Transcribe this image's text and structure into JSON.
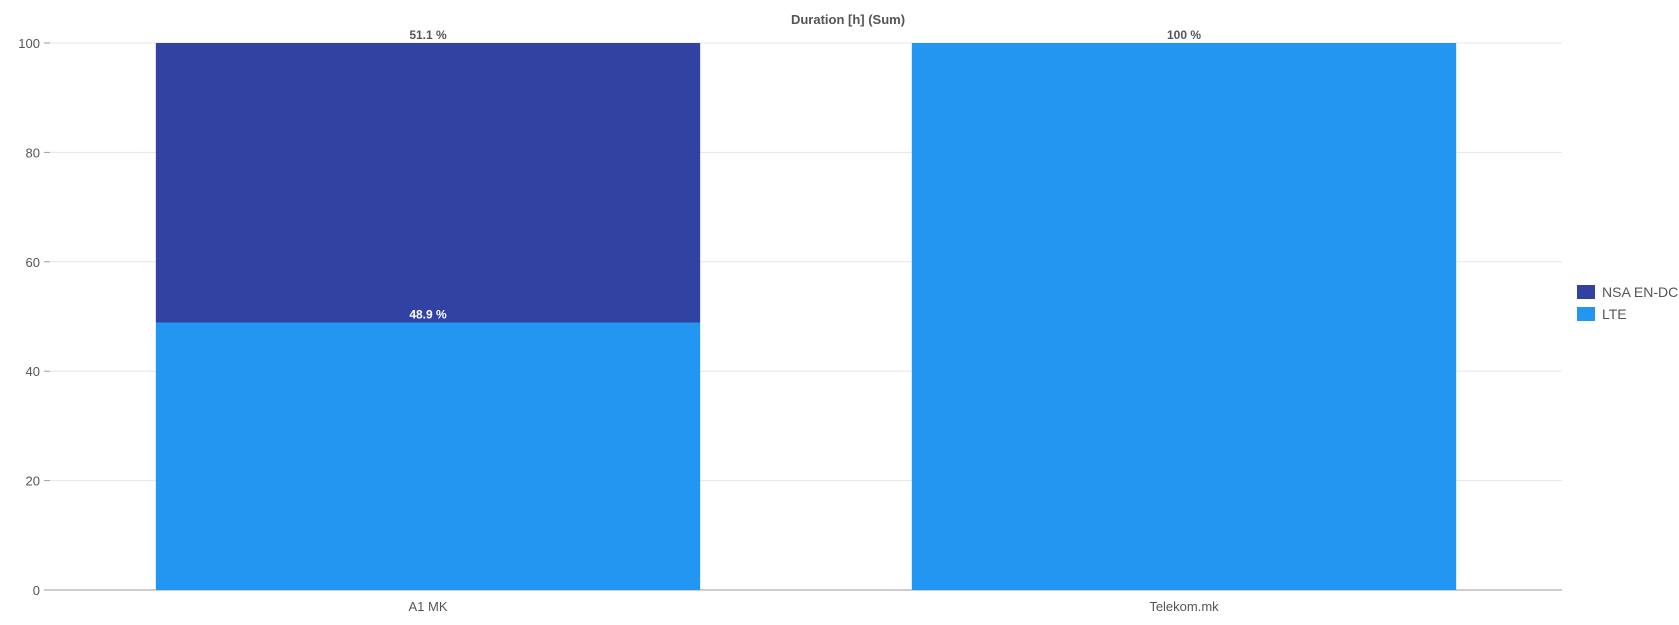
{
  "chart_data": {
    "type": "bar",
    "stacked": true,
    "title": "Duration [h] (Sum)",
    "categories": [
      "A1 MK",
      "Telekom.mk"
    ],
    "series": [
      {
        "name": "LTE",
        "color": "#2396f2",
        "values": [
          48.9,
          100
        ],
        "labels": [
          "48.9 %",
          "100 %"
        ]
      },
      {
        "name": "NSA EN-DC",
        "color": "#3142a2",
        "values": [
          51.1,
          0
        ],
        "labels": [
          "51.1 %",
          ""
        ]
      }
    ],
    "ylim": [
      0,
      100
    ],
    "yticks": [
      0,
      20,
      40,
      60,
      80,
      100
    ],
    "grid": true,
    "legend": {
      "position": "right",
      "entries": [
        {
          "name": "NSA EN-DC",
          "color": "#3142a2"
        },
        {
          "name": "LTE",
          "color": "#2396f2"
        }
      ]
    }
  }
}
